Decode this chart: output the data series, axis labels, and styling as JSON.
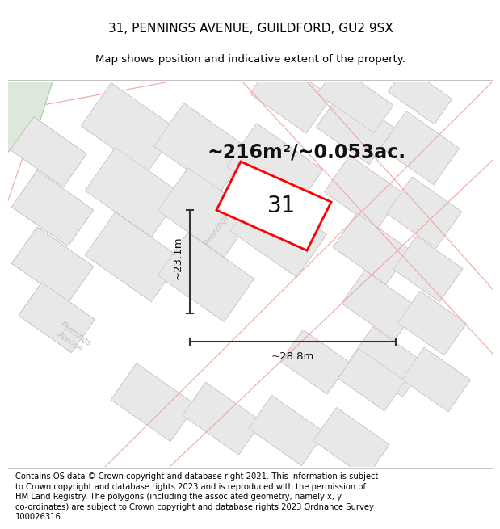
{
  "title_line1": "31, PENNINGS AVENUE, GUILDFORD, GU2 9SX",
  "title_line2": "Map shows position and indicative extent of the property.",
  "area_text": "~216m²/~0.053ac.",
  "number_label": "31",
  "width_label": "~28.8m",
  "height_label": "~23.1m",
  "footer_text": "Contains OS data © Crown copyright and database right 2021. This information is subject to Crown copyright and database rights 2023 and is reproduced with the permission of HM Land Registry. The polygons (including the associated geometry, namely x, y co-ordinates) are subject to Crown copyright and database rights 2023 Ordnance Survey 100026316.",
  "bg_map_color": "#f8f8f6",
  "building_fill": "#e8e8e8",
  "building_edge": "#c0c0c0",
  "road_line_color": "#f0a8a0",
  "road_fill_color": "#ffffff",
  "green_fill": "#dce8dc",
  "highlight_color": "#ff0000",
  "highlight_fill": "#ffffff",
  "arrow_color": "#333333",
  "title_fontsize": 11,
  "subtitle_fontsize": 9.5,
  "area_fontsize": 18,
  "number_fontsize": 22,
  "dim_fontsize": 10,
  "footer_fontsize": 7.2
}
